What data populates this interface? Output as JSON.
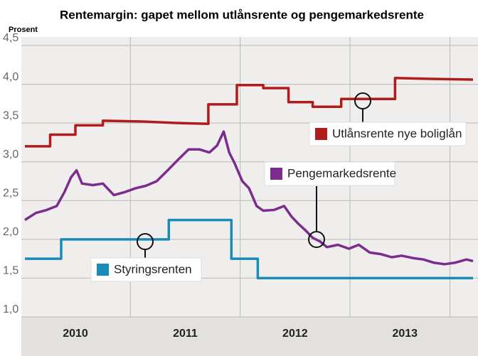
{
  "chart_data": {
    "type": "line",
    "title": "Rentemargin: gapet mellom utlånsrente og pengemarkedsrente",
    "y_label": "Prosent",
    "xlim": [
      2010.04,
      2014.12
    ],
    "ylim": [
      1.0,
      4.5
    ],
    "yticks": [
      {
        "value": 1.0,
        "label": "1,0"
      },
      {
        "value": 1.5,
        "label": "1,5"
      },
      {
        "value": 2.0,
        "label": "2,0"
      },
      {
        "value": 2.5,
        "label": "2,5"
      },
      {
        "value": 3.0,
        "label": "3,0"
      },
      {
        "value": 3.5,
        "label": "3,5"
      },
      {
        "value": 4.0,
        "label": "4,0"
      },
      {
        "value": 4.5,
        "label": "4,5"
      }
    ],
    "xticks": [
      {
        "value": 2010.5,
        "label": "2010"
      },
      {
        "value": 2011.5,
        "label": "2011"
      },
      {
        "value": 2012.5,
        "label": "2012"
      },
      {
        "value": 2013.5,
        "label": "2013"
      }
    ],
    "xgrid": [
      2011,
      2012,
      2013,
      2013.91
    ],
    "grid": true,
    "series": [
      {
        "name": "Utlånsrente nye boliglån",
        "color": "#b01c1c",
        "x": [
          2010.04,
          2010.27,
          2010.27,
          2010.5,
          2010.5,
          2010.75,
          2010.75,
          2011.11,
          2011.43,
          2011.71,
          2011.71,
          2011.97,
          2011.97,
          2012.21,
          2012.21,
          2012.44,
          2012.44,
          2012.66,
          2012.66,
          2012.92,
          2012.92,
          2013.41,
          2013.41,
          2013.7,
          2014.12
        ],
        "values": [
          3.2,
          3.2,
          3.35,
          3.35,
          3.47,
          3.47,
          3.53,
          3.52,
          3.5,
          3.49,
          3.74,
          3.74,
          3.99,
          3.99,
          3.95,
          3.95,
          3.77,
          3.77,
          3.71,
          3.71,
          3.81,
          3.81,
          4.08,
          4.07,
          4.06
        ]
      },
      {
        "name": "Pengemarkedsrente",
        "color": "#7b2d8e",
        "x": [
          2010.04,
          2010.14,
          2010.24,
          2010.33,
          2010.4,
          2010.46,
          2010.51,
          2010.56,
          2010.66,
          2010.75,
          2010.85,
          2010.95,
          2011.05,
          2011.14,
          2011.24,
          2011.34,
          2011.43,
          2011.53,
          2011.63,
          2011.72,
          2011.79,
          2011.85,
          2011.9,
          2011.95,
          2012.02,
          2012.08,
          2012.15,
          2012.21,
          2012.31,
          2012.4,
          2012.47,
          2012.53,
          2012.6,
          2012.66,
          2012.73,
          2012.79,
          2012.89,
          2012.99,
          2013.08,
          2013.18,
          2013.28,
          2013.38,
          2013.47,
          2013.57,
          2013.67,
          2013.76,
          2013.86,
          2013.96,
          2014.06,
          2014.12
        ],
        "values": [
          2.25,
          2.34,
          2.38,
          2.43,
          2.61,
          2.8,
          2.89,
          2.72,
          2.7,
          2.72,
          2.57,
          2.61,
          2.66,
          2.69,
          2.75,
          2.89,
          3.02,
          3.16,
          3.16,
          3.12,
          3.21,
          3.39,
          3.12,
          2.98,
          2.75,
          2.66,
          2.43,
          2.37,
          2.38,
          2.43,
          2.29,
          2.2,
          2.11,
          2.02,
          1.97,
          1.9,
          1.93,
          1.88,
          1.93,
          1.83,
          1.81,
          1.77,
          1.79,
          1.76,
          1.74,
          1.7,
          1.68,
          1.7,
          1.74,
          1.72
        ]
      },
      {
        "name": "Styringsrenten",
        "color": "#1a8ab8",
        "x": [
          2010.04,
          2010.37,
          2010.37,
          2011.35,
          2011.35,
          2011.92,
          2011.92,
          2012.16,
          2012.16,
          2014.12
        ],
        "values": [
          1.75,
          1.75,
          2.0,
          2.0,
          2.25,
          2.25,
          1.75,
          1.75,
          1.5,
          1.5
        ]
      }
    ]
  }
}
